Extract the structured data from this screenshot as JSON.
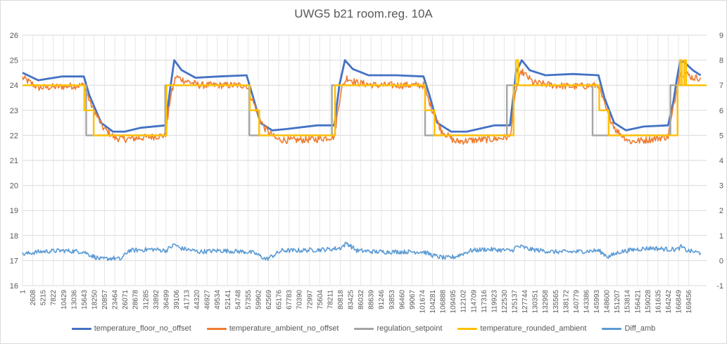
{
  "chart_data": {
    "type": "line",
    "title": "UWG5 b21 room.reg. 10A",
    "xlabel": "",
    "ylabel": "",
    "x_range": [
      1,
      174000
    ],
    "ylim_left": [
      16,
      26
    ],
    "ylim_right": [
      -1,
      9
    ],
    "y_ticks_left": [
      "16",
      "17",
      "18",
      "19",
      "20",
      "21",
      "22",
      "23",
      "24",
      "25",
      "26"
    ],
    "y_ticks_right": [
      "-1",
      "0",
      "1",
      "2",
      "3",
      "4",
      "5",
      "6",
      "7",
      "8",
      "9"
    ],
    "x_ticks": [
      1,
      2608,
      5215,
      7822,
      10429,
      13036,
      15643,
      18250,
      20857,
      23464,
      26071,
      28678,
      31285,
      33892,
      36499,
      39106,
      41713,
      44320,
      46927,
      49534,
      52141,
      54748,
      57355,
      59962,
      62569,
      65176,
      67783,
      70390,
      72997,
      75604,
      78211,
      80818,
      83425,
      86032,
      88639,
      91246,
      93853,
      96460,
      99067,
      101674,
      104281,
      106888,
      109495,
      112102,
      114709,
      117316,
      119923,
      122530,
      125137,
      127744,
      130351,
      132958,
      135565,
      138172,
      140779,
      143386,
      145993,
      148600,
      151207,
      153814,
      156421,
      159028,
      161635,
      164242,
      166849,
      169456
    ],
    "x_tick_labels": [
      "1",
      "2608",
      "5215",
      "7822",
      "10429",
      "13036",
      "15643",
      "18250",
      "20857",
      "23464",
      "26071",
      "28678",
      "31285",
      "33892",
      "36499",
      "39106",
      "41713",
      "44320",
      "46927",
      "49534",
      "52141",
      "54748",
      "57355",
      "59962",
      "62569",
      "65176",
      "67783",
      "70390",
      "72997",
      "75604",
      "78211",
      "80818",
      "83425",
      "86032",
      "88639",
      "91246",
      "93853",
      "96460",
      "99067",
      "101674",
      "104281",
      "106888",
      "109495",
      "112102",
      "114709",
      "117316",
      "119923",
      "122530",
      "125137",
      "127744",
      "130351",
      "132958",
      "135565",
      "138172",
      "140779",
      "143386",
      "145993",
      "148600",
      "151207",
      "153814",
      "156421",
      "159028",
      "161635",
      "164242",
      "166849",
      "169456"
    ],
    "grid": true,
    "legend_position": "bottom",
    "series": [
      {
        "name": "temperature_floor_no_offset",
        "axis": "left",
        "color": "#4472c4",
        "x": [
          1,
          4000,
          10000,
          15600,
          17000,
          20000,
          23000,
          26000,
          30000,
          36400,
          37500,
          38600,
          40500,
          44000,
          50000,
          57000,
          58500,
          60500,
          63500,
          67000,
          75000,
          79300,
          80600,
          82000,
          84000,
          88000,
          95000,
          102000,
          103500,
          105500,
          109000,
          113000,
          120000,
          124000,
          125500,
          127000,
          129000,
          133000,
          140000,
          146500,
          148000,
          150500,
          153500,
          158000,
          164200,
          165500,
          166500,
          167300,
          168500,
          170500,
          172500
        ],
        "y": [
          24.5,
          24.2,
          24.35,
          24.35,
          23.6,
          22.5,
          22.15,
          22.15,
          22.3,
          22.4,
          23.8,
          25.0,
          24.6,
          24.3,
          24.35,
          24.4,
          23.6,
          22.5,
          22.2,
          22.25,
          22.4,
          22.4,
          24.0,
          25.0,
          24.65,
          24.4,
          24.4,
          24.35,
          23.6,
          22.5,
          22.15,
          22.15,
          22.4,
          22.4,
          24.5,
          25.0,
          24.6,
          24.4,
          24.45,
          24.4,
          23.5,
          22.5,
          22.2,
          22.35,
          22.4,
          23.3,
          24.3,
          25.0,
          24.9,
          24.6,
          24.4
        ]
      },
      {
        "name": "temperature_ambient_no_offset",
        "axis": "left",
        "color": "#ed7d31",
        "x": [
          1,
          4000,
          10000,
          15600,
          17500,
          20500,
          23500,
          26000,
          30000,
          36400,
          37600,
          39000,
          41000,
          45000,
          50000,
          57000,
          59000,
          61500,
          64500,
          68000,
          75000,
          79300,
          81000,
          82500,
          85000,
          90000,
          95000,
          102000,
          104000,
          106500,
          110000,
          114000,
          120000,
          124000,
          125600,
          127000,
          130000,
          135000,
          140000,
          146500,
          148500,
          151000,
          154500,
          158000,
          164200,
          165800,
          167000,
          168500,
          170500,
          172500
        ],
        "y": [
          24.3,
          23.9,
          23.95,
          24.0,
          23.2,
          22.3,
          21.9,
          21.85,
          21.9,
          22.0,
          23.5,
          24.35,
          24.2,
          24.0,
          24.0,
          24.0,
          23.2,
          22.3,
          21.85,
          21.8,
          21.85,
          21.95,
          23.8,
          24.3,
          24.1,
          24.0,
          24.0,
          24.0,
          23.1,
          22.2,
          21.75,
          21.8,
          21.85,
          21.95,
          23.9,
          24.55,
          24.1,
          24.0,
          23.95,
          24.0,
          23.0,
          22.2,
          21.75,
          21.8,
          21.95,
          23.3,
          24.4,
          24.5,
          24.3,
          24.3
        ]
      },
      {
        "name": "regulation_setpoint",
        "axis": "right",
        "color": "#a5a5a5",
        "x": [
          1,
          16200,
          16200,
          36300,
          36300,
          57700,
          57700,
          78700,
          78700,
          102400,
          102400,
          123200,
          123200,
          145000,
          145000,
          164800,
          164800,
          174000
        ],
        "y": [
          7,
          7,
          5,
          5,
          7,
          7,
          5,
          5,
          7,
          7,
          5,
          5,
          7,
          7,
          5,
          5,
          7,
          7
        ]
      },
      {
        "name": "temperature_rounded_ambient",
        "axis": "right",
        "color": "#ffc000",
        "x": [
          1,
          15700,
          15700,
          18100,
          18100,
          20300,
          20300,
          36600,
          36600,
          57800,
          57800,
          60200,
          60200,
          62600,
          62600,
          79500,
          79500,
          102400,
          102400,
          104800,
          104800,
          107200,
          107200,
          124900,
          124900,
          125500,
          125500,
          126100,
          126100,
          146700,
          146700,
          149100,
          149100,
          151500,
          151500,
          166600,
          166600,
          167200,
          167200,
          167700,
          167700,
          168300,
          168300,
          168800,
          168800,
          174000
        ],
        "y": [
          7,
          7,
          6,
          6,
          5,
          5,
          5,
          5,
          7,
          7,
          6,
          6,
          5,
          5,
          5,
          5,
          7,
          7,
          6,
          6,
          5,
          5,
          5,
          5,
          7,
          7,
          8,
          8,
          7,
          7,
          6,
          6,
          5,
          5,
          5,
          5,
          7,
          7,
          8,
          8,
          7,
          7,
          8,
          8,
          7,
          7
        ]
      },
      {
        "name": "Diff_amb",
        "axis": "right",
        "color": "#5b9bd5",
        "x": [
          1,
          4000,
          10000,
          15600,
          17500,
          20000,
          23000,
          25000,
          27000,
          33000,
          36500,
          38700,
          40000,
          45000,
          50000,
          57000,
          59000,
          62000,
          66000,
          70000,
          78000,
          80800,
          82500,
          85000,
          90000,
          95000,
          102000,
          104500,
          107500,
          110000,
          114000,
          118000,
          124500,
          125600,
          127000,
          129000,
          135000,
          140000,
          146500,
          149000,
          152000,
          156000,
          160000,
          164200,
          166600,
          167500,
          169000,
          172500
        ],
        "y": [
          0.25,
          0.35,
          0.4,
          0.35,
          0.2,
          0.05,
          0.1,
          0.05,
          0.4,
          0.45,
          0.4,
          0.65,
          0.5,
          0.35,
          0.4,
          0.35,
          0.3,
          0.05,
          0.4,
          0.4,
          0.45,
          0.5,
          0.7,
          0.4,
          0.35,
          0.35,
          0.35,
          0.2,
          0.1,
          0.15,
          0.4,
          0.45,
          0.4,
          0.55,
          0.55,
          0.45,
          0.35,
          0.35,
          0.4,
          0.15,
          0.35,
          0.45,
          0.5,
          0.45,
          0.45,
          0.55,
          0.4,
          0.3
        ]
      }
    ]
  }
}
